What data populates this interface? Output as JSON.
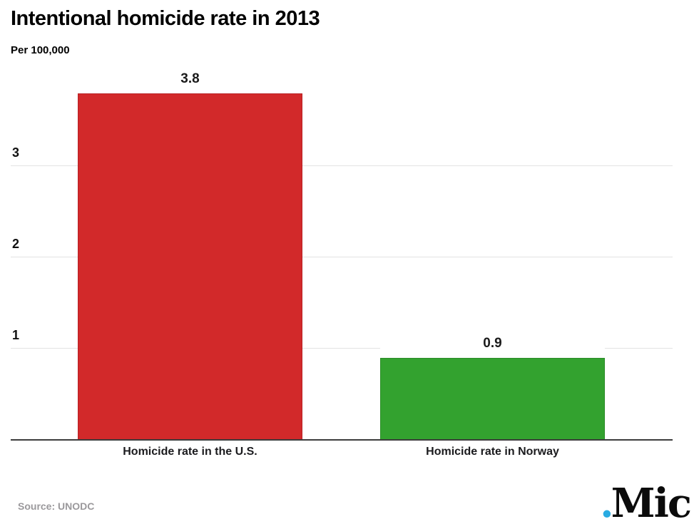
{
  "chart_data": {
    "type": "bar",
    "title": "Intentional homicide rate in 2013",
    "subtitle": "Per 100,000",
    "categories": [
      "Homicide rate in the U.S.",
      "Homicide rate in Norway"
    ],
    "values": [
      3.8,
      0.9
    ],
    "value_labels": [
      "3.8",
      "0.9"
    ],
    "bar_colors": [
      "#d2292a",
      "#33a22f"
    ],
    "bar_border_colors": [
      "#b92125",
      "#2b8c28"
    ],
    "xlabel": "",
    "ylabel": "",
    "ylim": [
      0,
      4
    ],
    "yticks": [
      "1",
      "2",
      "3"
    ],
    "grid": true,
    "gridline_color": "#e3e3e3",
    "axis_color": "#3c3c3c",
    "legend": false,
    "source": "Source: UNODC"
  },
  "branding": {
    "logo_dot": ".",
    "logo_text": "Mic",
    "logo_dot_color": "#29abe2",
    "logo_text_color": "#0b0b0b"
  }
}
